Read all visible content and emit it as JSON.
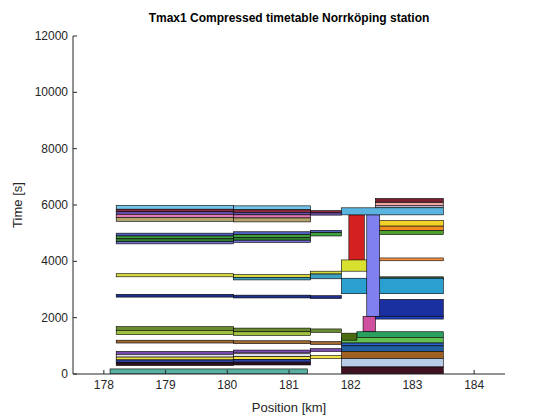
{
  "chart_data": {
    "type": "timetable",
    "title": "Tmax1 Compressed timetable Norrköping station",
    "x_label": "Position [km]",
    "y_label": "Time [s]",
    "xlim": [
      177.5,
      184.5
    ],
    "ylim": [
      0,
      12000
    ],
    "xticks": [
      178,
      179,
      180,
      181,
      182,
      183,
      184
    ],
    "yticks": [
      0,
      2000,
      4000,
      6000,
      8000,
      10000,
      12000
    ],
    "grid": false,
    "blocks": [
      {
        "x": [
          178.2,
          180.1
        ],
        "y": [
          5850,
          5990
        ],
        "color": "#73c4e8"
      },
      {
        "x": [
          180.1,
          181.35
        ],
        "y": [
          5830,
          5970
        ],
        "color": "#73c4e8"
      },
      {
        "x": [
          178.2,
          180.1
        ],
        "y": [
          5760,
          5850
        ],
        "color": "#8b2a3a"
      },
      {
        "x": [
          180.1,
          181.35
        ],
        "y": [
          5740,
          5830
        ],
        "color": "#8b2a3a"
      },
      {
        "x": [
          181.35,
          181.85
        ],
        "y": [
          5720,
          5800
        ],
        "color": "#8b2a3a"
      },
      {
        "x": [
          178.2,
          180.1
        ],
        "y": [
          5670,
          5760
        ],
        "color": "#6a4fb0"
      },
      {
        "x": [
          180.1,
          181.35
        ],
        "y": [
          5650,
          5740
        ],
        "color": "#6a4fb0"
      },
      {
        "x": [
          181.35,
          181.85
        ],
        "y": [
          5640,
          5720
        ],
        "color": "#6a4fb0"
      },
      {
        "x": [
          178.2,
          180.1
        ],
        "y": [
          5560,
          5670
        ],
        "color": "#e07ab0"
      },
      {
        "x": [
          180.1,
          181.35
        ],
        "y": [
          5540,
          5650
        ],
        "color": "#e07ab0"
      },
      {
        "x": [
          178.2,
          180.1
        ],
        "y": [
          5420,
          5560
        ],
        "color": "#b4a36a"
      },
      {
        "x": [
          180.1,
          181.35
        ],
        "y": [
          5400,
          5540
        ],
        "color": "#b4a36a"
      },
      {
        "x": [
          182.4,
          183.5
        ],
        "y": [
          5970,
          6100
        ],
        "color": "#f0a8a0"
      },
      {
        "x": [
          182.4,
          183.5
        ],
        "y": [
          6100,
          6230
        ],
        "color": "#7a2030"
      },
      {
        "x": [
          182.4,
          183.5
        ],
        "y": [
          5900,
          5970
        ],
        "color": "#cfd8f0"
      },
      {
        "x": [
          182.4,
          183.5
        ],
        "y": [
          5250,
          5450
        ],
        "color": "#f2d22a"
      },
      {
        "x": [
          182.4,
          183.5
        ],
        "y": [
          5100,
          5250
        ],
        "color": "#f08a20"
      },
      {
        "x": [
          182.4,
          183.5
        ],
        "y": [
          4950,
          5100
        ],
        "color": "#50a030"
      },
      {
        "x": [
          181.97,
          182.22
        ],
        "y": [
          4000,
          5650
        ],
        "color": "#d42020"
      },
      {
        "x": [
          178.2,
          180.1
        ],
        "y": [
          4900,
          5000
        ],
        "color": "#5060c0"
      },
      {
        "x": [
          180.1,
          181.35
        ],
        "y": [
          4950,
          5050
        ],
        "color": "#5060c0"
      },
      {
        "x": [
          181.35,
          181.85
        ],
        "y": [
          5020,
          5100
        ],
        "color": "#5060c0"
      },
      {
        "x": [
          178.2,
          180.1
        ],
        "y": [
          4800,
          4900
        ],
        "color": "#40a040"
      },
      {
        "x": [
          180.1,
          181.35
        ],
        "y": [
          4850,
          4950
        ],
        "color": "#40a040"
      },
      {
        "x": [
          181.35,
          181.85
        ],
        "y": [
          4900,
          5020
        ],
        "color": "#40a040"
      },
      {
        "x": [
          178.2,
          180.1
        ],
        "y": [
          4700,
          4800
        ],
        "color": "#308030"
      },
      {
        "x": [
          180.1,
          181.35
        ],
        "y": [
          4750,
          4850
        ],
        "color": "#308030"
      },
      {
        "x": [
          178.2,
          180.1
        ],
        "y": [
          4620,
          4700
        ],
        "color": "#7070d0"
      },
      {
        "x": [
          180.1,
          181.35
        ],
        "y": [
          4670,
          4750
        ],
        "color": "#7070d0"
      },
      {
        "x": [
          181.85,
          182.45
        ],
        "y": [
          3650,
          4050
        ],
        "color": "#d8e030"
      },
      {
        "x": [
          182.4,
          183.5
        ],
        "y": [
          4020,
          4120
        ],
        "color": "#f09040"
      },
      {
        "x": [
          182.4,
          183.5
        ],
        "y": [
          3350,
          3450
        ],
        "color": "#3a5a40"
      },
      {
        "x": [
          178.2,
          180.1
        ],
        "y": [
          3450,
          3560
        ],
        "color": "#d8d840"
      },
      {
        "x": [
          180.1,
          181.35
        ],
        "y": [
          3430,
          3530
        ],
        "color": "#d8d840"
      },
      {
        "x": [
          181.35,
          181.85
        ],
        "y": [
          3550,
          3650
        ],
        "color": "#d8d840"
      },
      {
        "x": [
          180.1,
          181.35
        ],
        "y": [
          3340,
          3430
        ],
        "color": "#40a0c0"
      },
      {
        "x": [
          181.35,
          181.85
        ],
        "y": [
          3380,
          3550
        ],
        "color": "#40a0c0"
      },
      {
        "x": [
          181.85,
          183.5
        ],
        "y": [
          2850,
          3400
        ],
        "color": "#2aa0d0"
      },
      {
        "x": [
          182.4,
          183.5
        ],
        "y": [
          2050,
          2650
        ],
        "color": "#1a30a0"
      },
      {
        "x": [
          182.4,
          183.5
        ],
        "y": [
          1950,
          2050
        ],
        "color": "#2040c0"
      },
      {
        "x": [
          178.2,
          180.1
        ],
        "y": [
          2730,
          2830
        ],
        "color": "#20308a"
      },
      {
        "x": [
          180.1,
          181.35
        ],
        "y": [
          2700,
          2800
        ],
        "color": "#20308a"
      },
      {
        "x": [
          181.35,
          181.85
        ],
        "y": [
          2680,
          2780
        ],
        "color": "#20308a"
      },
      {
        "x": [
          182.2,
          182.4
        ],
        "y": [
          1500,
          2050
        ],
        "color": "#d050a0"
      },
      {
        "x": [
          182.26,
          182.47
        ],
        "y": [
          2050,
          5650
        ],
        "color": "#8080f0"
      },
      {
        "x": [
          181.85,
          183.5
        ],
        "y": [
          5650,
          5900
        ],
        "color": "#5bb4e0"
      },
      {
        "x": [
          178.2,
          180.1
        ],
        "y": [
          1550,
          1680
        ],
        "color": "#6a8a30"
      },
      {
        "x": [
          180.1,
          181.35
        ],
        "y": [
          1500,
          1630
        ],
        "color": "#6a8a30"
      },
      {
        "x": [
          181.35,
          181.85
        ],
        "y": [
          1480,
          1600
        ],
        "color": "#6a8a30"
      },
      {
        "x": [
          178.2,
          180.1
        ],
        "y": [
          1400,
          1550
        ],
        "color": "#a0c040"
      },
      {
        "x": [
          180.1,
          181.35
        ],
        "y": [
          1370,
          1500
        ],
        "color": "#a0c040"
      },
      {
        "x": [
          182.1,
          183.5
        ],
        "y": [
          1300,
          1500
        ],
        "color": "#2aa060"
      },
      {
        "x": [
          181.85,
          183.5
        ],
        "y": [
          1100,
          1300
        ],
        "color": "#60c050"
      },
      {
        "x": [
          181.85,
          182.1
        ],
        "y": [
          1200,
          1450
        ],
        "color": "#4a6a10"
      },
      {
        "x": [
          178.2,
          180.1
        ],
        "y": [
          1100,
          1200
        ],
        "color": "#a06a30"
      },
      {
        "x": [
          180.1,
          181.35
        ],
        "y": [
          1080,
          1180
        ],
        "color": "#a06a30"
      },
      {
        "x": [
          181.35,
          181.85
        ],
        "y": [
          1050,
          1150
        ],
        "color": "#a06a30"
      },
      {
        "x": [
          181.85,
          183.5
        ],
        "y": [
          1000,
          1100
        ],
        "color": "#3060d0"
      },
      {
        "x": [
          181.85,
          183.5
        ],
        "y": [
          800,
          1000
        ],
        "color": "#2060a0"
      },
      {
        "x": [
          181.85,
          183.5
        ],
        "y": [
          550,
          800
        ],
        "color": "#a06020"
      },
      {
        "x": [
          181.85,
          183.5
        ],
        "y": [
          250,
          550
        ],
        "color": "#b8cce8"
      },
      {
        "x": [
          181.85,
          183.5
        ],
        "y": [
          0,
          250
        ],
        "color": "#401020"
      },
      {
        "x": [
          178.2,
          180.1
        ],
        "y": [
          700,
          800
        ],
        "color": "#7a4ab0"
      },
      {
        "x": [
          180.1,
          181.35
        ],
        "y": [
          750,
          850
        ],
        "color": "#7a4ab0"
      },
      {
        "x": [
          181.35,
          181.85
        ],
        "y": [
          800,
          900
        ],
        "color": "#7a4ab0"
      },
      {
        "x": [
          178.2,
          180.1
        ],
        "y": [
          600,
          700
        ],
        "color": "#e0e0f0"
      },
      {
        "x": [
          180.1,
          181.35
        ],
        "y": [
          620,
          720
        ],
        "color": "#e0e0f0"
      },
      {
        "x": [
          178.2,
          180.1
        ],
        "y": [
          500,
          600
        ],
        "color": "#f0e040"
      },
      {
        "x": [
          180.1,
          181.35
        ],
        "y": [
          520,
          620
        ],
        "color": "#f0e040"
      },
      {
        "x": [
          181.35,
          181.85
        ],
        "y": [
          550,
          650
        ],
        "color": "#f0e040"
      },
      {
        "x": [
          178.2,
          180.1
        ],
        "y": [
          400,
          500
        ],
        "color": "#3040a0"
      },
      {
        "x": [
          180.1,
          181.35
        ],
        "y": [
          420,
          520
        ],
        "color": "#3040a0"
      },
      {
        "x": [
          178.2,
          180.1
        ],
        "y": [
          300,
          400
        ],
        "color": "#301020"
      },
      {
        "x": [
          180.1,
          181.35
        ],
        "y": [
          320,
          420
        ],
        "color": "#301020"
      },
      {
        "x": [
          178.1,
          181.3
        ],
        "y": [
          0,
          180
        ],
        "color": "#5ab0a0"
      }
    ]
  }
}
